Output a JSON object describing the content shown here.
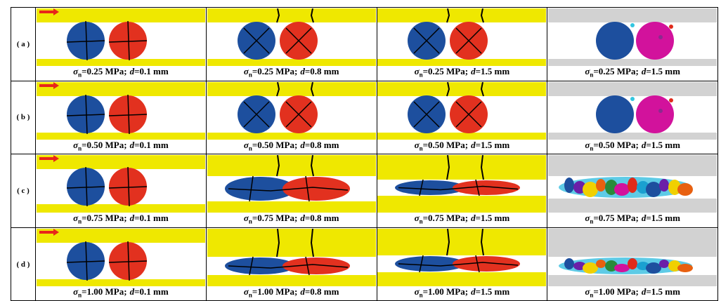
{
  "rows": [
    {
      "label": "( a )",
      "panels": [
        {
          "sigma": "σ",
          "sub": "n",
          "stress": "=0.25 MPa;",
          "var": "d",
          "disp": "=0.1 mm"
        },
        {
          "sigma": "σ",
          "sub": "n",
          "stress": "=0.25 MPa;",
          "var": "d",
          "disp": "=0.8 mm"
        },
        {
          "sigma": "σ",
          "sub": "n",
          "stress": "=0.25 MPa;",
          "var": "d",
          "disp": "=1.5 mm"
        },
        {
          "sigma": "σ",
          "sub": "n",
          "stress": "=0.25 MPa;",
          "var": "d",
          "disp": "=1.5 mm"
        }
      ]
    },
    {
      "label": "( b )",
      "panels": [
        {
          "sigma": "σ",
          "sub": "n",
          "stress": "=0.50 MPa;",
          "var": "d",
          "disp": "=0.1 mm"
        },
        {
          "sigma": "σ",
          "sub": "n",
          "stress": "=0.50 MPa;",
          "var": "d",
          "disp": "=0.8 mm"
        },
        {
          "sigma": "σ",
          "sub": "n",
          "stress": "=0.50 MPa;",
          "var": "d",
          "disp": "=1.5 mm"
        },
        {
          "sigma": "σ",
          "sub": "n",
          "stress": "=0.50 MPa;",
          "var": "d",
          "disp": "=1.5 mm"
        }
      ]
    },
    {
      "label": "( c )",
      "panels": [
        {
          "sigma": "σ",
          "sub": "n",
          "stress": "=0.75 MPa;",
          "var": "d",
          "disp": "=0.1 mm"
        },
        {
          "sigma": "σ",
          "sub": "n",
          "stress": "=0.75 MPa;",
          "var": "d",
          "disp": "=0.8 mm"
        },
        {
          "sigma": "σ",
          "sub": "n",
          "stress": "=0.75 MPa;",
          "var": "d",
          "disp": "=1.5 mm"
        },
        {
          "sigma": "σ",
          "sub": "n",
          "stress": "=0.75 MPa;",
          "var": "d",
          "disp": "=1.5 mm"
        }
      ]
    },
    {
      "label": "( d )",
      "panels": [
        {
          "sigma": "σ",
          "sub": "n",
          "stress": "=1.00 MPa;",
          "var": "d",
          "disp": "=0.1 mm"
        },
        {
          "sigma": "σ",
          "sub": "n",
          "stress": "=1.00 MPa;",
          "var": "d",
          "disp": "=0.8 mm"
        },
        {
          "sigma": "σ",
          "sub": "n",
          "stress": "=1.00 MPa;",
          "var": "d",
          "disp": "=1.5 mm"
        },
        {
          "sigma": "σ",
          "sub": "n",
          "stress": "=1.00 MPa;",
          "var": "d",
          "disp": "=1.5 mm"
        }
      ]
    }
  ]
}
